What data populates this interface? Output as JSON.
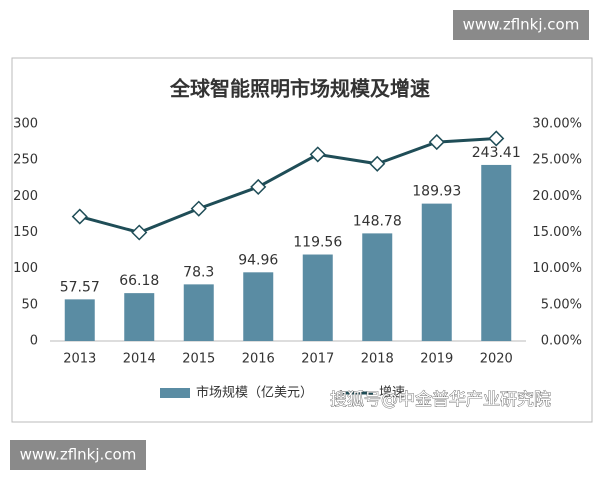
{
  "watermarks": [
    "www.zflnkj.com",
    "www.zflnkj.com",
    "搜狐号@中金普华产业研究院"
  ],
  "chart_data": {
    "type": "bar-line",
    "title": "全球智能照明市场规模及增速",
    "categories": [
      "2013",
      "2014",
      "2015",
      "2016",
      "2017",
      "2018",
      "2019",
      "2020"
    ],
    "series": [
      {
        "name": "市场规模（亿美元）",
        "type": "bar",
        "color": "#5a8ca3",
        "values": [
          57.57,
          66.18,
          78.3,
          94.96,
          119.56,
          148.78,
          189.93,
          243.41
        ]
      },
      {
        "name": "增速",
        "type": "line",
        "axis": "y2",
        "color": "#1f4d57",
        "values": [
          17.2,
          15.0,
          18.3,
          21.3,
          25.8,
          24.5,
          27.5,
          28.0
        ]
      }
    ],
    "ylim": [
      0,
      300
    ],
    "yticks": [
      0,
      50,
      100,
      150,
      200,
      250,
      300
    ],
    "y2lim": [
      0,
      30
    ],
    "y2ticks": [
      {
        "value": 0,
        "label": "0.00%"
      },
      {
        "value": 5,
        "label": "5.00%"
      },
      {
        "value": 10,
        "label": "10.00%"
      },
      {
        "value": 15,
        "label": "15.00%"
      },
      {
        "value": 20,
        "label": "20.00%"
      },
      {
        "value": 25,
        "label": "25.00%"
      },
      {
        "value": 30,
        "label": "30.00%"
      }
    ],
    "grid": false,
    "legend": "bottom"
  }
}
